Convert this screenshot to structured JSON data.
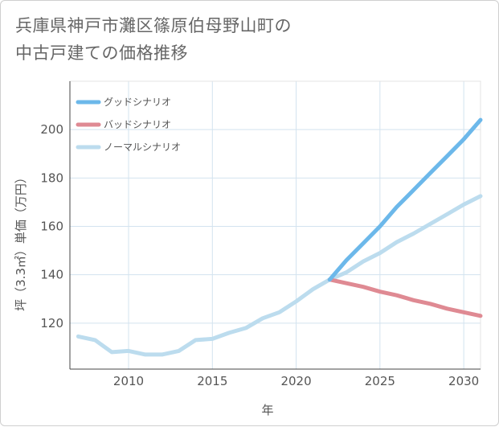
{
  "chart_data": {
    "type": "line",
    "title_line1": "兵庫県神戸市灘区篠原伯母野山町の",
    "title_line2": "中古戸建ての価格推移",
    "xlabel": "年",
    "ylabel": "坪（3.3㎡）単価（万円）",
    "xlim": [
      2006.5,
      2031
    ],
    "ylim": [
      101,
      220
    ],
    "x_ticks": [
      2010,
      2015,
      2020,
      2025,
      2030
    ],
    "y_ticks": [
      120,
      140,
      160,
      180,
      200
    ],
    "grid": true,
    "legend_position": "top-left",
    "series": [
      {
        "name": "グッドシナリオ",
        "color": "#6cb8ea",
        "x": [
          2022,
          2023,
          2024,
          2025,
          2026,
          2027,
          2028,
          2029,
          2030,
          2031
        ],
        "values": [
          138,
          146,
          153,
          160,
          168,
          175,
          182,
          189,
          196,
          204
        ]
      },
      {
        "name": "バッドシナリオ",
        "color": "#df8a93",
        "x": [
          2022,
          2023,
          2024,
          2025,
          2026,
          2027,
          2028,
          2029,
          2030,
          2031
        ],
        "values": [
          138,
          136.5,
          135,
          133,
          131.5,
          129.5,
          128,
          126,
          124.5,
          123
        ]
      },
      {
        "name": "ノーマルシナリオ",
        "color": "#bcdcee",
        "x": [
          2007,
          2008,
          2009,
          2010,
          2011,
          2012,
          2013,
          2014,
          2015,
          2016,
          2017,
          2018,
          2019,
          2020,
          2021,
          2022,
          2023,
          2024,
          2025,
          2026,
          2027,
          2028,
          2029,
          2030,
          2031
        ],
        "values": [
          114.5,
          113,
          108,
          108.5,
          107,
          107,
          108.5,
          113,
          113.5,
          116,
          118,
          122,
          124.5,
          129,
          134,
          138,
          141,
          145.5,
          149,
          153.5,
          157,
          161,
          165,
          169,
          172.5
        ]
      }
    ]
  }
}
